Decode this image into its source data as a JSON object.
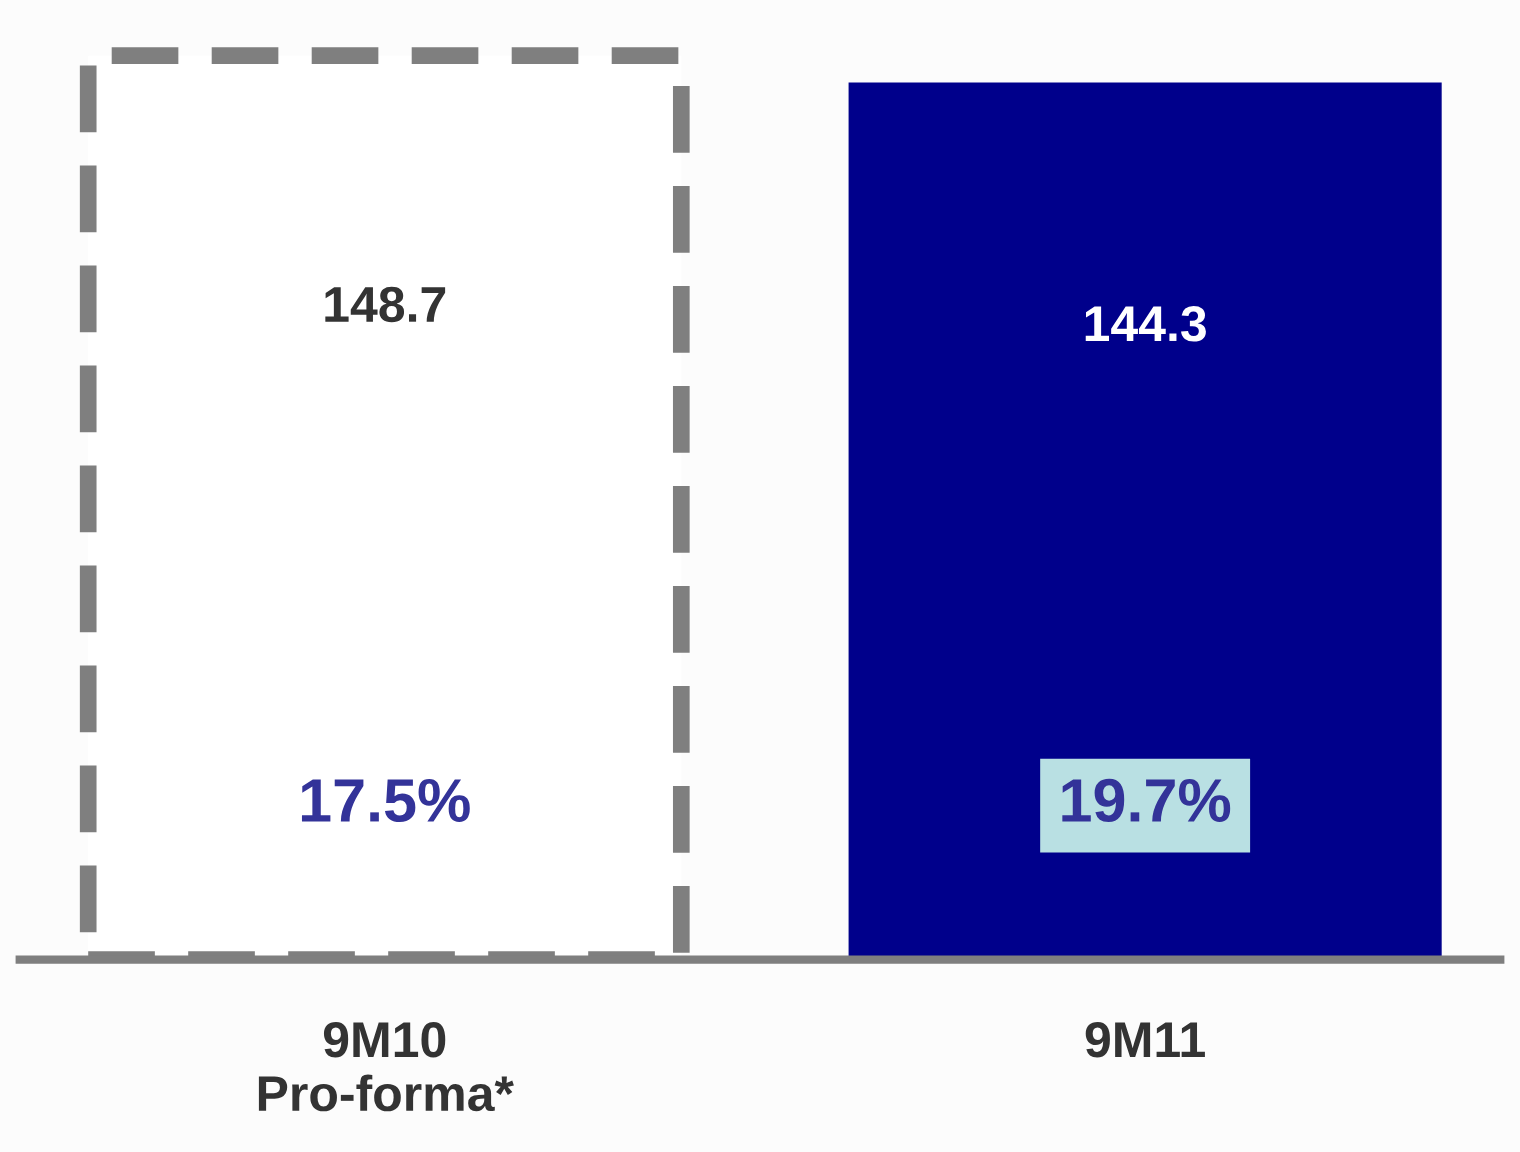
{
  "chart_data": {
    "type": "bar",
    "categories": [
      "9M10\nPro-forma*",
      "9M11"
    ],
    "series": [
      {
        "color": "#7f7f7f",
        "line_style": "dashed",
        "values": [
          148.7,
          null
        ]
      },
      {
        "color": "#00008b",
        "line_style": "solid",
        "values": [
          null,
          144.3
        ]
      }
    ],
    "data_labels": true,
    "grid": false,
    "legend": false,
    "annotations": [
      "17.5%",
      "19.7%"
    ]
  }
}
